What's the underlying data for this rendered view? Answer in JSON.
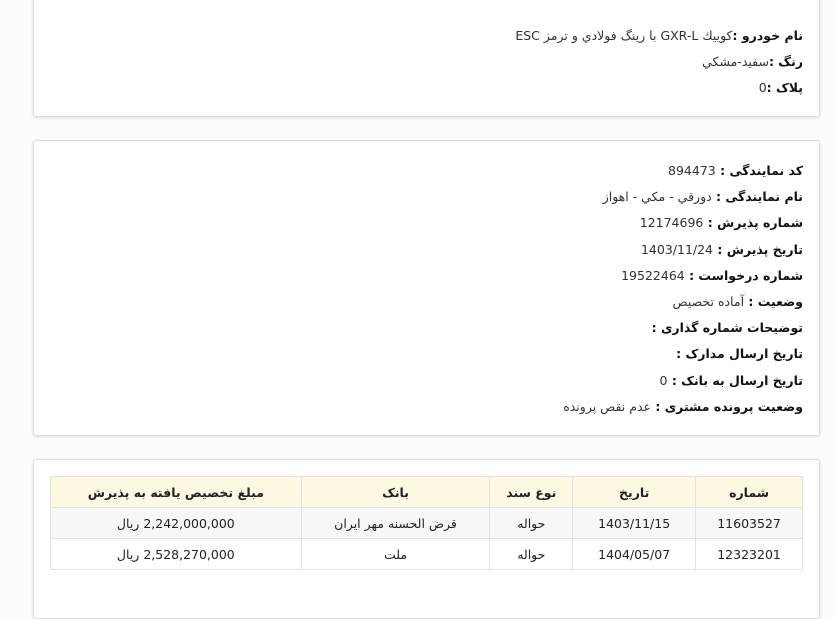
{
  "vehicle": {
    "lines": [
      {
        "label": "نام خودرو :",
        "value": "كوييك GXR-L با رينگ فولادي و ترمز ESC"
      },
      {
        "label": "رنگ :",
        "value": "سفيد-مشكي"
      },
      {
        "label": "پلاک :",
        "value": "0"
      }
    ]
  },
  "dealer": {
    "lines": [
      {
        "label": "کد نمایندگی : ",
        "value": "894473"
      },
      {
        "label": "نام نمایندگی : ",
        "value": "دورقي - مكي - اهواز"
      },
      {
        "label": "شماره پذیرش : ",
        "value": "12174696"
      },
      {
        "label": "تاریخ پذیرش : ",
        "value": "1403/11/24"
      },
      {
        "label": "شماره درخواست : ",
        "value": "19522464"
      },
      {
        "label": "وضعیت : ",
        "value": "آماده تخصيص"
      },
      {
        "label": "توضیحات شماره گذاری : ",
        "value": ""
      },
      {
        "label": "تاریخ ارسال مدارک : ",
        "value": ""
      },
      {
        "label": "تاریخ ارسال به بانک : ",
        "value": "0"
      },
      {
        "label": "وضعیت پرونده مشتری : ",
        "value": "عدم نقص پرونده"
      }
    ]
  },
  "table": {
    "headers": [
      "شماره",
      "تاریخ",
      "نوع سند",
      "بانک",
      "مبلغ تخصیص یافته به پذیرش"
    ],
    "rows": [
      [
        "11603527",
        "1403/11/15",
        "حواله",
        "قرض الحسنه مهر ایران",
        "2,242,000,000 ریال"
      ],
      [
        "12323201",
        "1404/05/07",
        "حواله",
        "ملت",
        "2,528,270,000 ریال"
      ]
    ]
  }
}
